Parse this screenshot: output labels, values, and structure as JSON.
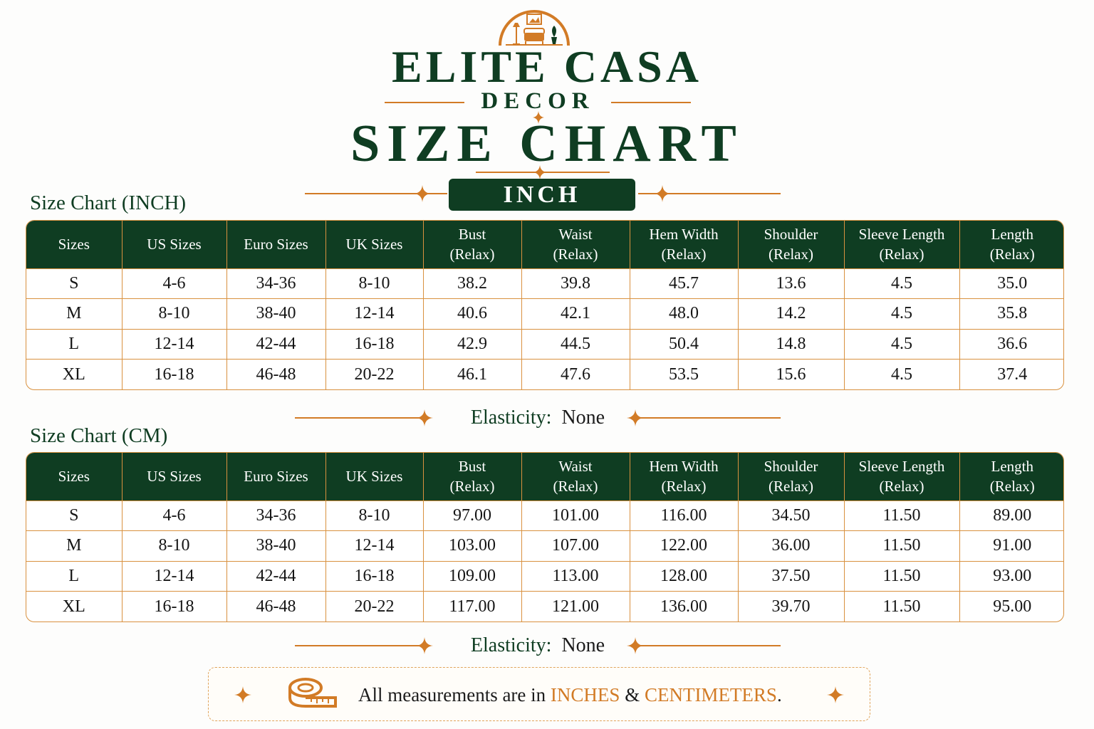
{
  "brand": {
    "name": "ELITE CASA",
    "sub": "DECOR",
    "logo_icon": "room-emblem-icon"
  },
  "header": {
    "title": "SIZE CHART",
    "unit_badge": "INCH"
  },
  "columns": [
    {
      "line1": "Sizes",
      "line2": ""
    },
    {
      "line1": "US Sizes",
      "line2": ""
    },
    {
      "line1": "Euro Sizes",
      "line2": ""
    },
    {
      "line1": "UK Sizes",
      "line2": ""
    },
    {
      "line1": "Bust",
      "line2": "(Relax)"
    },
    {
      "line1": "Waist",
      "line2": "(Relax)"
    },
    {
      "line1": "Hem Width",
      "line2": "(Relax)"
    },
    {
      "line1": "Shoulder",
      "line2": "(Relax)"
    },
    {
      "line1": "Sleeve Length",
      "line2": "(Relax)"
    },
    {
      "line1": "Length",
      "line2": "(Relax)"
    }
  ],
  "inch_table": {
    "title": "Size Chart (INCH)",
    "rows": [
      [
        "S",
        "4-6",
        "34-36",
        "8-10",
        "38.2",
        "39.8",
        "45.7",
        "13.6",
        "4.5",
        "35.0"
      ],
      [
        "M",
        "8-10",
        "38-40",
        "12-14",
        "40.6",
        "42.1",
        "48.0",
        "14.2",
        "4.5",
        "35.8"
      ],
      [
        "L",
        "12-14",
        "42-44",
        "16-18",
        "42.9",
        "44.5",
        "50.4",
        "14.8",
        "4.5",
        "36.6"
      ],
      [
        "XL",
        "16-18",
        "46-48",
        "20-22",
        "46.1",
        "47.6",
        "53.5",
        "15.6",
        "4.5",
        "37.4"
      ]
    ],
    "elasticity_label": "Elasticity:",
    "elasticity_value": "None"
  },
  "cm_table": {
    "title": "Size Chart (CM)",
    "rows": [
      [
        "S",
        "4-6",
        "34-36",
        "8-10",
        "97.00",
        "101.00",
        "116.00",
        "34.50",
        "11.50",
        "89.00"
      ],
      [
        "M",
        "8-10",
        "38-40",
        "12-14",
        "103.00",
        "107.00",
        "122.00",
        "36.00",
        "11.50",
        "91.00"
      ],
      [
        "L",
        "12-14",
        "42-44",
        "16-18",
        "109.00",
        "113.00",
        "128.00",
        "37.50",
        "11.50",
        "93.00"
      ],
      [
        "XL",
        "16-18",
        "46-48",
        "20-22",
        "117.00",
        "121.00",
        "136.00",
        "39.70",
        "11.50",
        "95.00"
      ]
    ],
    "elasticity_label": "Elasticity:",
    "elasticity_value": "None"
  },
  "note": {
    "prefix": "All measurements are in ",
    "unit1": "INCHES",
    "joiner": " & ",
    "unit2": "CENTIMETERS",
    "suffix": ".",
    "icon": "measuring-tape-icon"
  },
  "colors": {
    "primary_green": "#0f3d22",
    "accent_orange": "#d27b26",
    "border_orange": "#d9913f"
  }
}
